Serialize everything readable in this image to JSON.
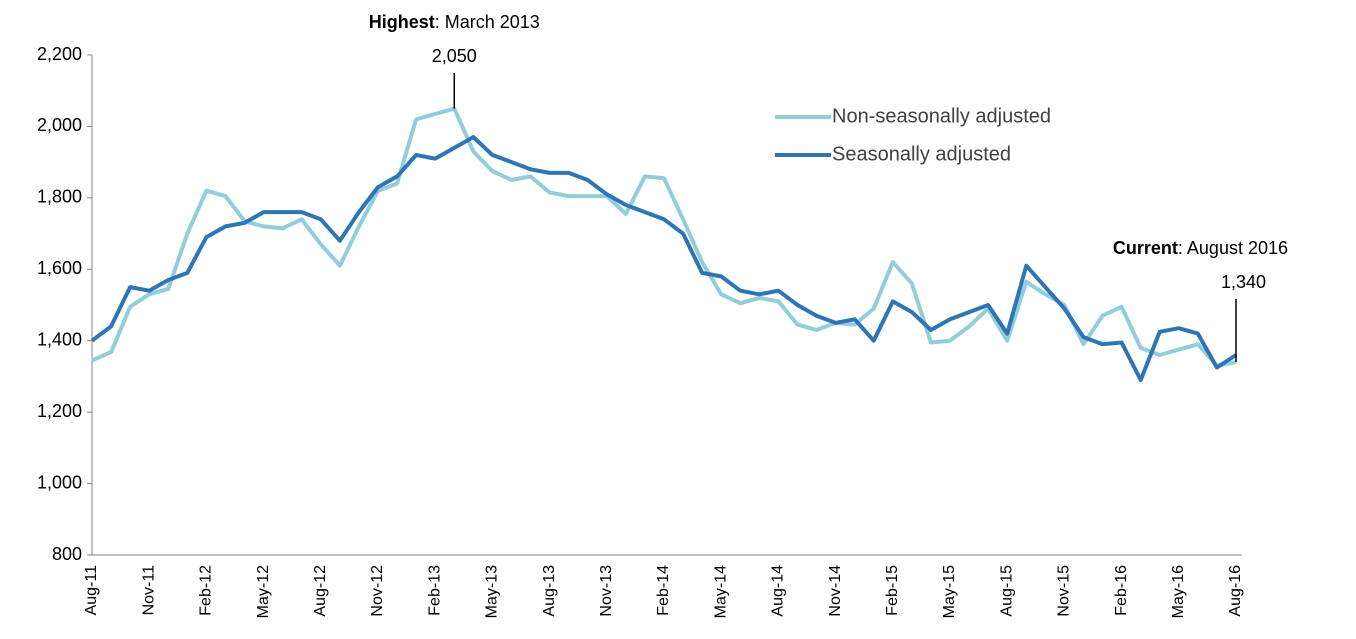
{
  "chart_data": {
    "type": "line",
    "categories": [
      "Aug-11",
      null,
      null,
      "Nov-11",
      null,
      null,
      "Feb-12",
      null,
      null,
      "May-12",
      null,
      null,
      "Aug-12",
      null,
      null,
      "Nov-12",
      null,
      null,
      "Feb-13",
      null,
      null,
      "May-13",
      null,
      null,
      "Aug-13",
      null,
      null,
      "Nov-13",
      null,
      null,
      "Feb-14",
      null,
      null,
      "May-14",
      null,
      null,
      "Aug-14",
      null,
      null,
      "Nov-14",
      null,
      null,
      "Feb-15",
      null,
      null,
      "May-15",
      null,
      null,
      "Aug-15",
      null,
      null,
      "Nov-15",
      null,
      null,
      "Feb-16",
      null,
      null,
      "May-16",
      null,
      null,
      "Aug-16"
    ],
    "series": [
      {
        "name": "Non-seasonally adjusted",
        "color": "#92cddc",
        "values": [
          1345,
          1368,
          1495,
          1530,
          1545,
          1700,
          1820,
          1805,
          1735,
          1720,
          1715,
          1740,
          1670,
          1610,
          1720,
          1820,
          1840,
          2020,
          2035,
          2050,
          1930,
          1875,
          1850,
          1860,
          1815,
          1805,
          1805,
          1805,
          1755,
          1860,
          1855,
          1740,
          1620,
          1530,
          1505,
          1520,
          1510,
          1445,
          1430,
          1450,
          1445,
          1490,
          1620,
          1560,
          1395,
          1400,
          1440,
          1490,
          1400,
          1565,
          1530,
          1500,
          1390,
          1470,
          1495,
          1380,
          1360,
          1375,
          1390,
          1330,
          1340
        ]
      },
      {
        "name": "Seasonally adjusted",
        "color": "#2e75b6",
        "values": [
          1400,
          1440,
          1550,
          1540,
          1570,
          1590,
          1690,
          1720,
          1730,
          1760,
          1760,
          1760,
          1740,
          1680,
          1760,
          1830,
          1860,
          1920,
          1910,
          1940,
          1970,
          1920,
          1900,
          1880,
          1870,
          1870,
          1850,
          1810,
          1780,
          1760,
          1740,
          1700,
          1590,
          1580,
          1540,
          1530,
          1540,
          1500,
          1470,
          1450,
          1460,
          1400,
          1510,
          1480,
          1430,
          1460,
          1480,
          1500,
          1420,
          1610,
          1550,
          1490,
          1410,
          1390,
          1395,
          1290,
          1425,
          1435,
          1420,
          1325,
          1360
        ]
      }
    ],
    "ylim": [
      800,
      2200
    ],
    "yticks": [
      800,
      {
        "value": 1000,
        "label": "1,000"
      },
      {
        "value": 1200,
        "label": "1,200"
      },
      {
        "value": 1400,
        "label": "1,400"
      },
      {
        "value": 1600,
        "label": "1,600"
      },
      {
        "value": 1800,
        "label": "1,800"
      },
      {
        "value": 2000,
        "label": "2,000"
      },
      {
        "value": 2200,
        "label": "2,200"
      }
    ],
    "grid": false,
    "legend": "top-right",
    "annotations": [
      {
        "label": "Highest",
        "text": ": March 2013",
        "value": 2050,
        "value_label": "2,050"
      },
      {
        "label": "Current",
        "text": ": August 2016",
        "value": 1340,
        "value_label": "1,340"
      }
    ]
  }
}
